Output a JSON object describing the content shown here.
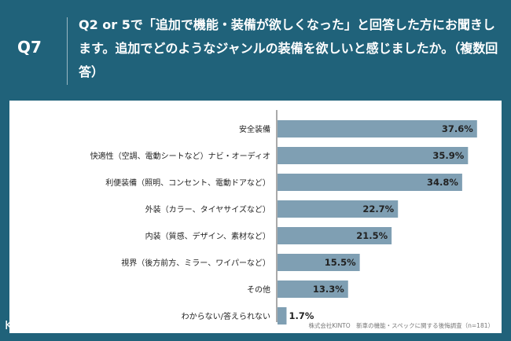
{
  "header": {
    "question_id": "Q7",
    "question_text": "Q2 or 5で「追加で機能・装備が欲しくなった」と回答した方にお聞きします。追加でどのようなジャンルの装備を欲しいと感じましたか。（複数回答）"
  },
  "chart_data": {
    "type": "bar",
    "orientation": "horizontal",
    "categories": [
      "安全装備",
      "快適性（空調、電動シートなど）ナビ・オーディオ",
      "利便装備（照明、コンセント、電動ドアなど）",
      "外装（カラー、タイヤサイズなど）",
      "内装（質感、デザイン、素材など）",
      "視界（後方前方、ミラー、ワイパーなど）",
      "その他",
      "わからない/答えられない"
    ],
    "values": [
      37.6,
      35.9,
      34.8,
      22.7,
      21.5,
      15.5,
      13.3,
      1.7
    ],
    "value_labels": [
      "37.6%",
      "35.9%",
      "34.8%",
      "22.7%",
      "21.5%",
      "15.5%",
      "13.3%",
      "1.7%"
    ],
    "unit": "%",
    "xlim": [
      0,
      40
    ],
    "bar_color": "#7f9fb3"
  },
  "footer": {
    "source": "株式会社KINTO　新車の機能・スペックに関する後悔調査（n=181）",
    "logo": "KINTO"
  }
}
